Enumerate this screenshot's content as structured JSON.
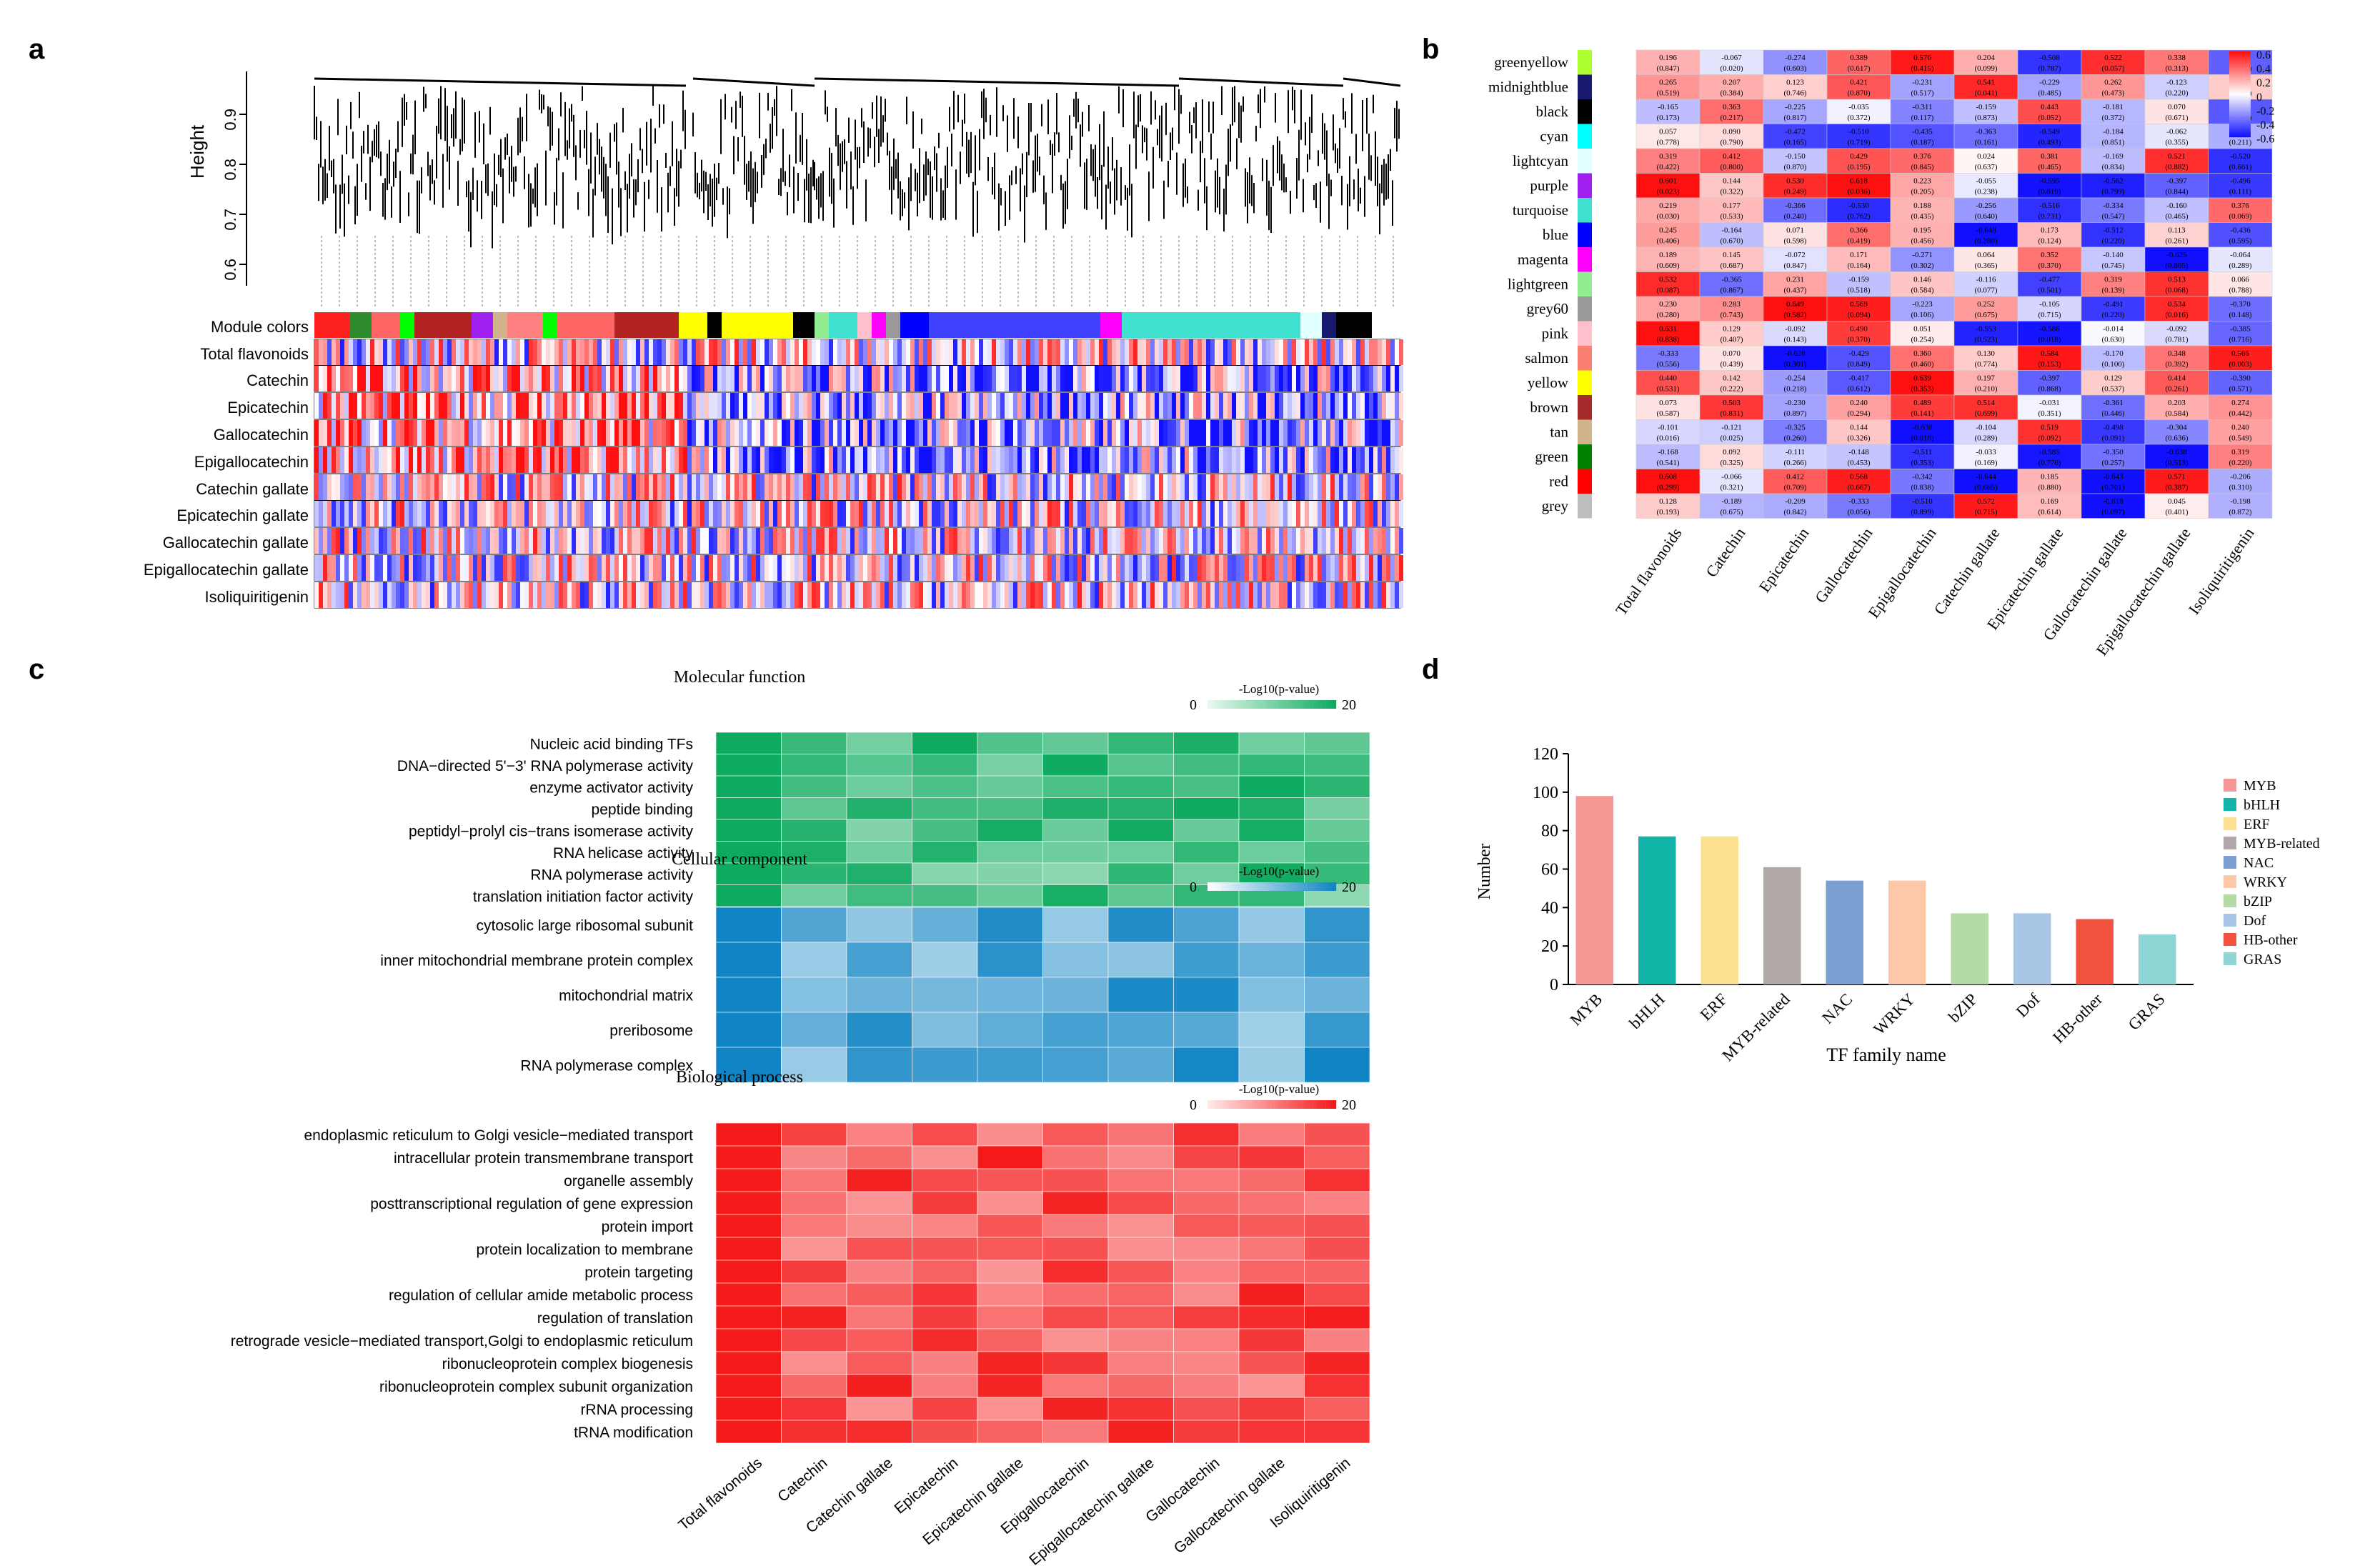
{
  "panels": {
    "a": "a",
    "b": "b",
    "c": "c",
    "d": "d"
  },
  "panel_a": {
    "height_label": "Height",
    "yticks": [
      "0.9",
      "0.8",
      "0.7",
      "0.6"
    ],
    "row_labels": [
      "Module colors",
      "Total flavonoids",
      "Catechin",
      "Epicatechin",
      "Gallocatechin",
      "Epigallocatechin",
      "Catechin gallate",
      "Epicatechin gallate",
      "Gallocatechin gallate",
      "Epigallocatechin gallate",
      "Isoliquiritigenin"
    ]
  },
  "panel_b": {
    "modules": [
      "greenyellow",
      "midnightblue",
      "black",
      "cyan",
      "lightcyan",
      "purple",
      "turquoise",
      "blue",
      "magenta",
      "lightgreen",
      "grey60",
      "pink",
      "salmon",
      "yellow",
      "brown",
      "tan",
      "green",
      "red",
      "grey"
    ],
    "module_colors": [
      "#adff2f",
      "#191970",
      "#000000",
      "#00ffff",
      "#e0ffff",
      "#a020f0",
      "#40e0d0",
      "#0000ff",
      "#ff00ff",
      "#90ee90",
      "#999999",
      "#ffc0cb",
      "#fa8072",
      "#ffff00",
      "#a52a2a",
      "#d2b48c",
      "#008000",
      "#ff0000",
      "#bebebe"
    ],
    "traits": [
      "Total flavonoids",
      "Catechin",
      "Epicatechin",
      "Gallocatechin",
      "Epigallocatechin",
      "Catechin gallate",
      "Epicatechin gallate",
      "Gallocatechin gallate",
      "Epigallocatechin gallate",
      "Isoliquiritigenin"
    ],
    "legend_ticks": [
      "0.6",
      "0.4",
      "0.2",
      "0",
      "-0.2",
      "-0.4",
      "-0.6"
    ]
  },
  "panel_c": {
    "sections": [
      {
        "title": "Molecular function",
        "legend": "-Log10(p-value)",
        "lmin": "0",
        "lmax": "20",
        "rows": [
          "Nucleic acid binding TFs",
          "DNA−directed 5'−3' RNA polymerase activity",
          "enzyme activator activity",
          "peptide binding",
          "peptidyl−prolyl cis−trans isomerase activity",
          "RNA helicase activity",
          "RNA polymerase activity",
          "translation initiation factor activity"
        ]
      },
      {
        "title": "Cellular component",
        "legend": "-Log10(p-value)",
        "lmin": "0",
        "lmax": "20",
        "rows": [
          "cytosolic large ribosomal subunit",
          "inner mitochondrial membrane protein complex",
          "mitochondrial matrix",
          "preribosome",
          "RNA polymerase complex"
        ]
      },
      {
        "title": "Biological process",
        "legend": "-Log10(p-value)",
        "lmin": "0",
        "lmax": "20",
        "rows": [
          "endoplasmic reticulum to Golgi vesicle−mediated transport",
          "intracellular protein transmembrane transport",
          "organelle assembly",
          "posttranscriptional regulation of gene expression",
          "protein import",
          "protein localization to membrane",
          "protein targeting",
          "regulation of cellular amide metabolic process",
          "regulation of translation",
          "retrograde vesicle−mediated transport,Golgi to endoplasmic reticulum",
          "ribonucleoprotein complex biogenesis",
          "ribonucleoprotein complex subunit organization",
          "rRNA processing",
          "tRNA modification"
        ]
      }
    ],
    "columns": [
      "Total flavonoids",
      "Catechin",
      "Catechin gallate",
      "Epicatechin",
      "Epicatechin gallate",
      "Epigallocatechin",
      "Epigallocatechin gallate",
      "Gallocatechin",
      "Gallocatechin gallate",
      "Isoliquiritigenin"
    ]
  },
  "chart_data": {
    "type": "bar",
    "title": "",
    "xlabel": "TF family name",
    "ylabel": "Number",
    "ylim": [
      0,
      120
    ],
    "yticks": [
      "0",
      "20",
      "40",
      "60",
      "80",
      "100",
      "120"
    ],
    "categories": [
      "MYB",
      "bHLH",
      "ERF",
      "MYB-related",
      "NAC",
      "WRKY",
      "bZIP",
      "Dof",
      "HB-other",
      "GRAS"
    ],
    "values": [
      98,
      77,
      77,
      61,
      54,
      54,
      37,
      37,
      34,
      26
    ],
    "colors": [
      "#f79795",
      "#13b5a8",
      "#fde08e",
      "#b1a8a8",
      "#7a9fd1",
      "#fcc8a8",
      "#b4dba4",
      "#a9c5e5",
      "#f2533e",
      "#8fd5d5"
    ],
    "legend": [
      "MYB",
      "bHLH",
      "ERF",
      "MYB-related",
      "NAC",
      "WRKY",
      "bZIP",
      "Dof",
      "HB-other",
      "GRAS"
    ]
  }
}
